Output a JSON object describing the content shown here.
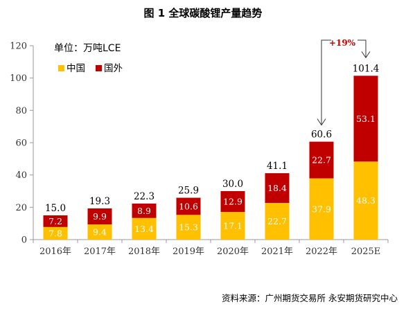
{
  "title": "图 1 全球碳酸锂产量趋势",
  "source": "资料来源：广州期货交易所 永安期货研究中心",
  "colors": {
    "china": "#FFC000",
    "foreign": "#C00000"
  },
  "chart_data": {
    "type": "bar",
    "stacked": true,
    "unit_label": "单位：万吨LCE",
    "categories": [
      "2016年",
      "2017年",
      "2018年",
      "2019年",
      "2020年",
      "2021年",
      "2022年",
      "2025E"
    ],
    "series": [
      {
        "name": "中国",
        "values": [
          7.8,
          9.4,
          13.4,
          15.3,
          17.1,
          22.7,
          37.9,
          48.3
        ]
      },
      {
        "name": "国外",
        "values": [
          7.2,
          9.9,
          8.9,
          10.6,
          12.9,
          18.4,
          22.7,
          53.1
        ]
      }
    ],
    "totals": [
      "15.0",
      "19.3",
      "22.3",
      "25.9",
      "30.0",
      "41.1",
      "60.6",
      "101.4"
    ],
    "y_ticks": [
      "0",
      "20",
      "40",
      "60",
      "80",
      "100",
      "120"
    ],
    "ylim": [
      0,
      120
    ],
    "legend_position": "top-left",
    "grid": false,
    "annotation": {
      "text": "+19%",
      "from": "2022年",
      "to": "2025E"
    }
  }
}
